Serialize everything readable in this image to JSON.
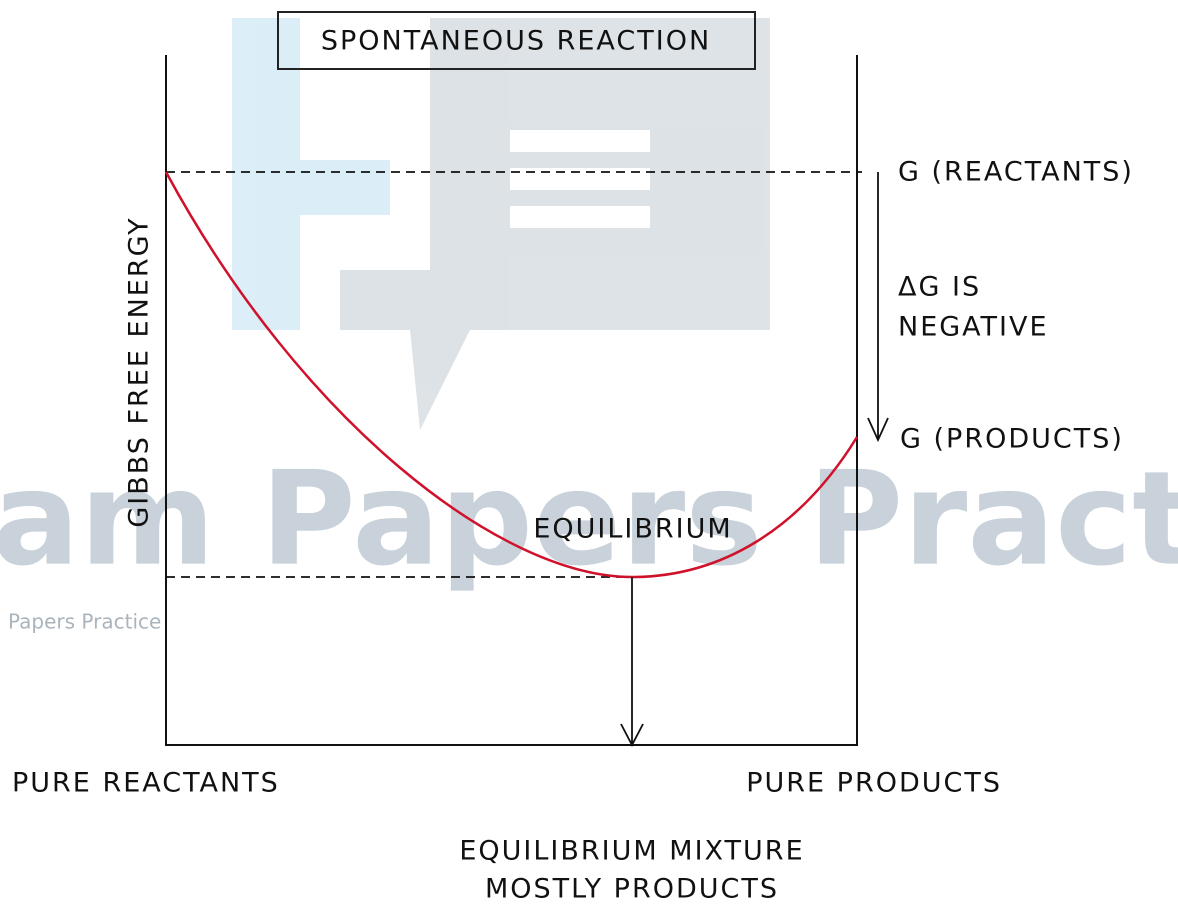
{
  "title": "SPONTANEOUS REACTION",
  "y_axis_label": "GIBBS FREE ENERGY",
  "labels": {
    "g_reactants": "G (REACTANTS)",
    "delta_g_line1": "ΔG IS",
    "delta_g_line2": "NEGATIVE",
    "g_products": "G (PRODUCTS)",
    "equilibrium": "EQUILIBRIUM",
    "pure_reactants": "PURE REACTANTS",
    "pure_products": "PURE PRODUCTS",
    "mixture_line1": "EQUILIBRIUM MIXTURE",
    "mixture_line2": "MOSTLY PRODUCTS"
  },
  "watermark": {
    "large": "am Papers Practice",
    "small": "Papers Practice"
  }
}
